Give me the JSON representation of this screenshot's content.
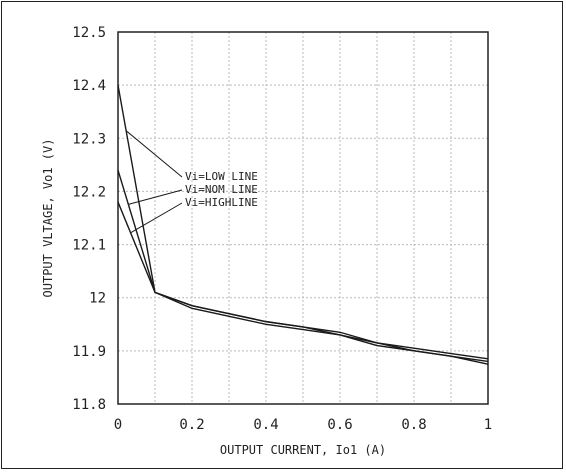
{
  "chart_data": {
    "type": "line",
    "title": "",
    "xlabel": "OUTPUT CURRENT, Io1 (A)",
    "ylabel": "OUTPUT VLTAGE, Vo1 (V)",
    "xlim": [
      0,
      1
    ],
    "ylim": [
      11.8,
      12.5
    ],
    "grid": true,
    "x_ticks": [
      0,
      0.1,
      0.2,
      0.3,
      0.4,
      0.5,
      0.6,
      0.7,
      0.8,
      0.9,
      1.0
    ],
    "x_tick_labels": [
      "0",
      "",
      "0.2",
      "",
      "0.4",
      "",
      "0.6",
      "",
      "0.8",
      "",
      "1"
    ],
    "y_ticks": [
      11.8,
      11.9,
      12.0,
      12.1,
      12.2,
      12.3,
      12.4,
      12.5
    ],
    "y_tick_labels": [
      "11.8",
      "11.9",
      "12",
      "12.1",
      "12.2",
      "12.3",
      "12.4",
      "12.5"
    ],
    "x": [
      0,
      0.1,
      0.2,
      0.3,
      0.4,
      0.5,
      0.6,
      0.7,
      0.8,
      0.9,
      1.0
    ],
    "series": [
      {
        "name": "Vi=LOW LINE",
        "values": [
          12.4,
          12.01,
          11.98,
          11.965,
          11.95,
          11.94,
          11.93,
          11.91,
          11.9,
          11.89,
          11.875
        ]
      },
      {
        "name": "Vi=NOM LINE",
        "values": [
          12.24,
          12.01,
          11.985,
          11.97,
          11.955,
          11.945,
          11.93,
          11.915,
          11.9,
          11.89,
          11.88
        ]
      },
      {
        "name": "Vi=HIGHLINE",
        "values": [
          12.18,
          12.01,
          11.985,
          11.97,
          11.955,
          11.945,
          11.935,
          11.915,
          11.905,
          11.895,
          11.885
        ]
      }
    ],
    "legend_placement": "upper-middle, with leader lines to curves",
    "line_color": "#1a1a1a",
    "grid_color": "#bbbbbb"
  }
}
